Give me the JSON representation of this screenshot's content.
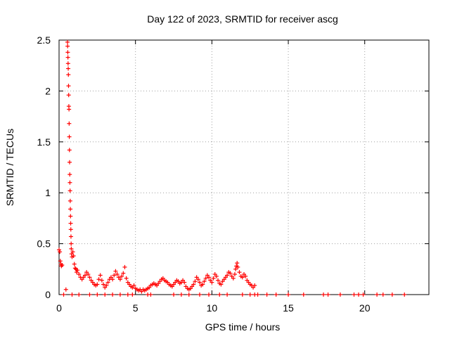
{
  "chart_data": {
    "type": "scatter",
    "title": "Day 122 of 2023, SRMTID for receiver ascg",
    "xlabel": "GPS time / hours",
    "ylabel": "SRMTID / TECUs",
    "xlim": [
      0,
      24.2
    ],
    "ylim": [
      0,
      2.5
    ],
    "xticks": [
      0,
      5,
      10,
      15,
      20
    ],
    "xtick_labels": [
      "0",
      "5",
      "10",
      "15",
      "20"
    ],
    "yticks": [
      0,
      0.5,
      1,
      1.5,
      2,
      2.5
    ],
    "ytick_labels": [
      "0",
      "0.5",
      "1",
      "1.5",
      "2",
      "2.5"
    ],
    "grid": true,
    "marker_color": "#ff0000",
    "series": [
      {
        "name": "SRMTID",
        "marker": "plus",
        "points": [
          [
            0.0,
            0.44
          ],
          [
            0.05,
            0.42
          ],
          [
            0.08,
            0.33
          ],
          [
            0.12,
            0.3
          ],
          [
            0.15,
            0.28
          ],
          [
            0.2,
            0.29
          ],
          [
            0.45,
            0.05
          ],
          [
            0.55,
            2.48
          ],
          [
            0.56,
            2.44
          ],
          [
            0.57,
            2.38
          ],
          [
            0.58,
            2.33
          ],
          [
            0.59,
            2.27
          ],
          [
            0.6,
            2.22
          ],
          [
            0.61,
            2.16
          ],
          [
            0.62,
            2.05
          ],
          [
            0.63,
            1.96
          ],
          [
            0.64,
            1.85
          ],
          [
            0.65,
            1.82
          ],
          [
            0.66,
            1.68
          ],
          [
            0.67,
            1.55
          ],
          [
            0.68,
            1.42
          ],
          [
            0.69,
            1.3
          ],
          [
            0.7,
            1.18
          ],
          [
            0.71,
            1.1
          ],
          [
            0.72,
            1.02
          ],
          [
            0.73,
            0.92
          ],
          [
            0.74,
            0.84
          ],
          [
            0.75,
            0.77
          ],
          [
            0.76,
            0.7
          ],
          [
            0.77,
            0.64
          ],
          [
            0.78,
            0.57
          ],
          [
            0.79,
            0.5
          ],
          [
            0.8,
            0.45
          ],
          [
            0.82,
            0.4
          ],
          [
            0.85,
            0.37
          ],
          [
            0.9,
            0.42
          ],
          [
            0.95,
            0.38
          ],
          [
            1.0,
            0.3
          ],
          [
            1.05,
            0.26
          ],
          [
            1.1,
            0.25
          ],
          [
            1.15,
            0.22
          ],
          [
            1.2,
            0.24
          ],
          [
            1.3,
            0.2
          ],
          [
            1.4,
            0.17
          ],
          [
            1.5,
            0.15
          ],
          [
            1.6,
            0.17
          ],
          [
            1.7,
            0.19
          ],
          [
            1.8,
            0.22
          ],
          [
            1.9,
            0.2
          ],
          [
            2.0,
            0.17
          ],
          [
            2.1,
            0.14
          ],
          [
            2.2,
            0.12
          ],
          [
            2.3,
            0.1
          ],
          [
            2.4,
            0.09
          ],
          [
            2.5,
            0.1
          ],
          [
            2.6,
            0.15
          ],
          [
            2.7,
            0.19
          ],
          [
            2.8,
            0.14
          ],
          [
            2.9,
            0.1
          ],
          [
            3.0,
            0.07
          ],
          [
            3.1,
            0.09
          ],
          [
            3.2,
            0.12
          ],
          [
            3.3,
            0.15
          ],
          [
            3.4,
            0.17
          ],
          [
            3.5,
            0.15
          ],
          [
            3.6,
            0.19
          ],
          [
            3.7,
            0.23
          ],
          [
            3.8,
            0.2
          ],
          [
            3.9,
            0.17
          ],
          [
            4.0,
            0.15
          ],
          [
            4.1,
            0.18
          ],
          [
            4.2,
            0.21
          ],
          [
            4.3,
            0.27
          ],
          [
            4.4,
            0.16
          ],
          [
            4.5,
            0.12
          ],
          [
            4.6,
            0.1
          ],
          [
            4.7,
            0.08
          ],
          [
            4.8,
            0.07
          ],
          [
            4.9,
            0.09
          ],
          [
            5.0,
            0.06
          ],
          [
            5.1,
            0.05
          ],
          [
            5.2,
            0.04
          ],
          [
            5.3,
            0.05
          ],
          [
            5.4,
            0.03
          ],
          [
            5.5,
            0.05
          ],
          [
            5.6,
            0.04
          ],
          [
            5.7,
            0.05
          ],
          [
            5.8,
            0.06
          ],
          [
            5.9,
            0.07
          ],
          [
            6.0,
            0.09
          ],
          [
            6.1,
            0.1
          ],
          [
            6.2,
            0.11
          ],
          [
            6.3,
            0.1
          ],
          [
            6.4,
            0.09
          ],
          [
            6.5,
            0.11
          ],
          [
            6.6,
            0.13
          ],
          [
            6.7,
            0.15
          ],
          [
            6.8,
            0.16
          ],
          [
            6.9,
            0.14
          ],
          [
            7.0,
            0.13
          ],
          [
            7.1,
            0.12
          ],
          [
            7.2,
            0.1
          ],
          [
            7.3,
            0.09
          ],
          [
            7.4,
            0.08
          ],
          [
            7.5,
            0.1
          ],
          [
            7.6,
            0.12
          ],
          [
            7.7,
            0.14
          ],
          [
            7.8,
            0.13
          ],
          [
            7.9,
            0.11
          ],
          [
            8.0,
            0.12
          ],
          [
            8.1,
            0.14
          ],
          [
            8.2,
            0.12
          ],
          [
            8.3,
            0.08
          ],
          [
            8.4,
            0.06
          ],
          [
            8.5,
            0.05
          ],
          [
            8.6,
            0.06
          ],
          [
            8.7,
            0.08
          ],
          [
            8.8,
            0.1
          ],
          [
            8.9,
            0.13
          ],
          [
            9.0,
            0.17
          ],
          [
            9.1,
            0.15
          ],
          [
            9.2,
            0.12
          ],
          [
            9.3,
            0.09
          ],
          [
            9.4,
            0.1
          ],
          [
            9.5,
            0.13
          ],
          [
            9.6,
            0.16
          ],
          [
            9.7,
            0.19
          ],
          [
            9.8,
            0.17
          ],
          [
            9.9,
            0.14
          ],
          [
            10.0,
            0.12
          ],
          [
            10.1,
            0.16
          ],
          [
            10.2,
            0.2
          ],
          [
            10.3,
            0.18
          ],
          [
            10.4,
            0.14
          ],
          [
            10.5,
            0.11
          ],
          [
            10.6,
            0.1
          ],
          [
            10.7,
            0.13
          ],
          [
            10.8,
            0.15
          ],
          [
            10.9,
            0.17
          ],
          [
            11.0,
            0.19
          ],
          [
            11.1,
            0.22
          ],
          [
            11.2,
            0.21
          ],
          [
            11.3,
            0.18
          ],
          [
            11.4,
            0.16
          ],
          [
            11.5,
            0.2
          ],
          [
            11.55,
            0.25
          ],
          [
            11.6,
            0.28
          ],
          [
            11.65,
            0.31
          ],
          [
            11.7,
            0.27
          ],
          [
            11.8,
            0.22
          ],
          [
            11.9,
            0.18
          ],
          [
            12.0,
            0.17
          ],
          [
            12.1,
            0.2
          ],
          [
            12.2,
            0.18
          ],
          [
            12.3,
            0.14
          ],
          [
            12.4,
            0.12
          ],
          [
            12.5,
            0.1
          ],
          [
            12.6,
            0.09
          ],
          [
            12.7,
            0.07
          ],
          [
            12.8,
            0.09
          ],
          [
            0.3,
            0.0
          ],
          [
            0.85,
            0.0
          ],
          [
            1.3,
            0.0
          ],
          [
            2.0,
            0.0
          ],
          [
            2.5,
            0.0
          ],
          [
            3.0,
            0.0
          ],
          [
            3.5,
            0.0
          ],
          [
            4.0,
            0.0
          ],
          [
            4.5,
            0.0
          ],
          [
            4.8,
            0.0
          ],
          [
            5.8,
            0.0
          ],
          [
            6.0,
            0.0
          ],
          [
            7.5,
            0.0
          ],
          [
            8.0,
            0.0
          ],
          [
            8.5,
            0.0
          ],
          [
            9.2,
            0.0
          ],
          [
            9.8,
            0.0
          ],
          [
            10.5,
            0.0
          ],
          [
            11.0,
            0.0
          ],
          [
            12.0,
            0.0
          ],
          [
            12.5,
            0.0
          ],
          [
            12.8,
            0.0
          ],
          [
            13.0,
            0.0
          ],
          [
            13.6,
            0.0
          ],
          [
            14.2,
            0.0
          ],
          [
            15.0,
            0.0
          ],
          [
            16.0,
            0.0
          ],
          [
            17.3,
            0.0
          ],
          [
            17.6,
            0.0
          ],
          [
            18.4,
            0.0
          ],
          [
            19.3,
            0.0
          ],
          [
            19.6,
            0.0
          ],
          [
            19.9,
            0.0
          ],
          [
            20.8,
            0.0
          ],
          [
            21.2,
            0.0
          ],
          [
            21.8,
            0.0
          ],
          [
            22.6,
            0.0
          ]
        ]
      }
    ]
  }
}
